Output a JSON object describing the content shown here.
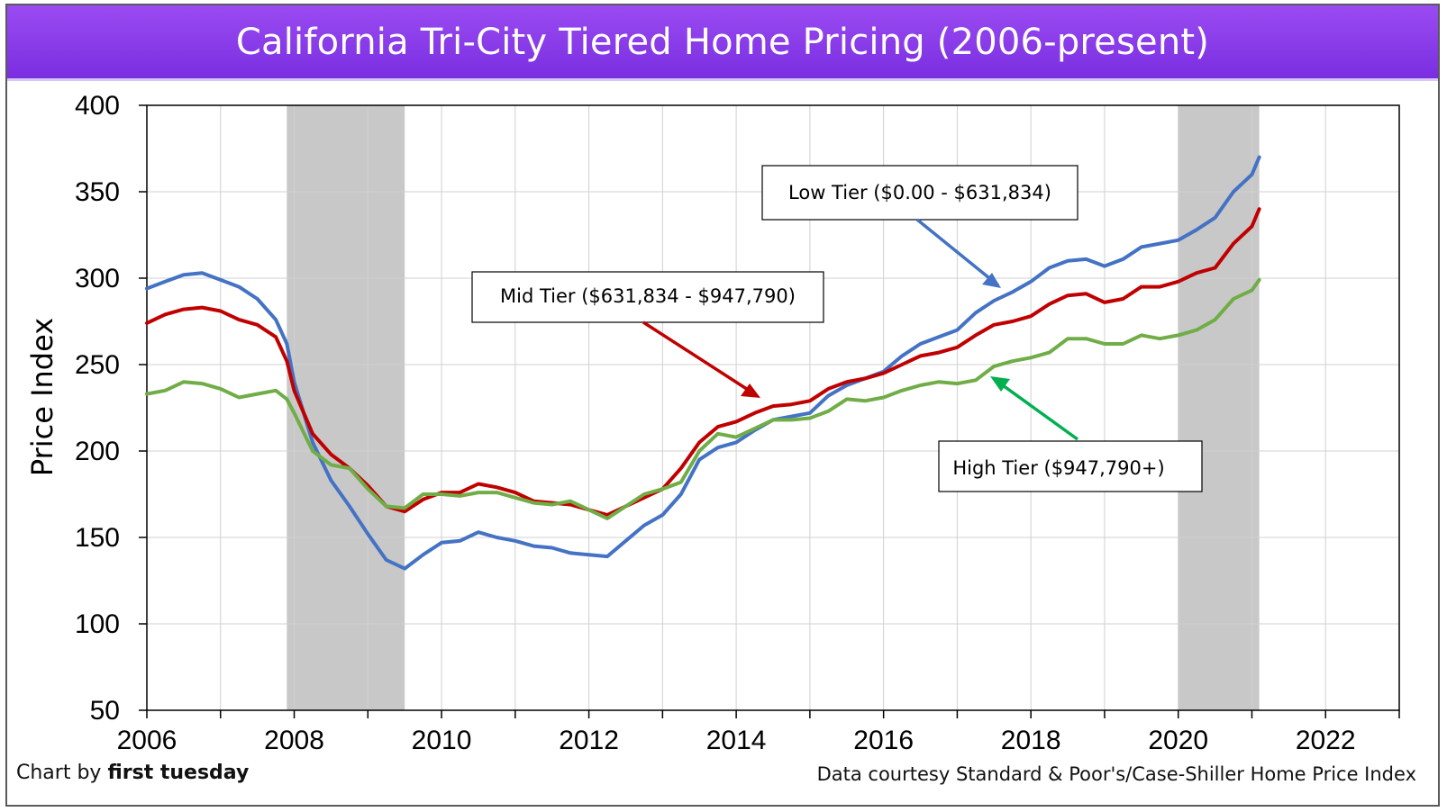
{
  "header": {
    "title": "California Tri-City Tiered Home Pricing (2006-present)"
  },
  "footer": {
    "credit_prefix": "Chart by ",
    "credit_brand": "first tuesday",
    "source": "Data courtesy Standard & Poor's/Case-Shiller Home Price Index"
  },
  "chart_data": {
    "type": "line",
    "title": "California Tri-City Tiered Home Pricing (2006-present)",
    "xlabel": "",
    "ylabel": "Price Index",
    "xlim": [
      2006,
      2023
    ],
    "ylim": [
      50,
      400
    ],
    "x_ticks": [
      "2006",
      "2008",
      "2010",
      "2012",
      "2014",
      "2016",
      "2018",
      "2020",
      "2022"
    ],
    "y_ticks": [
      "50",
      "100",
      "150",
      "200",
      "250",
      "300",
      "350",
      "400"
    ],
    "grid": true,
    "recessions": [
      [
        2007.9,
        2009.5
      ],
      [
        2020.0,
        2021.1
      ]
    ],
    "annotations": [
      {
        "text": "Low Tier ($0.00 - $631,834)"
      },
      {
        "text": "Mid Tier ($631,834 - $947,790)"
      },
      {
        "text": "High Tier ($947,790+)"
      }
    ],
    "series": [
      {
        "key": "low",
        "color": "#4472c4",
        "points": [
          [
            2006.0,
            294
          ],
          [
            2006.25,
            298
          ],
          [
            2006.5,
            302
          ],
          [
            2006.75,
            303
          ],
          [
            2007.0,
            299
          ],
          [
            2007.25,
            295
          ],
          [
            2007.5,
            288
          ],
          [
            2007.75,
            276
          ],
          [
            2007.9,
            262
          ],
          [
            2008.0,
            240
          ],
          [
            2008.25,
            205
          ],
          [
            2008.5,
            183
          ],
          [
            2008.75,
            168
          ],
          [
            2009.0,
            152
          ],
          [
            2009.25,
            137
          ],
          [
            2009.5,
            132
          ],
          [
            2009.75,
            140
          ],
          [
            2010.0,
            147
          ],
          [
            2010.25,
            148
          ],
          [
            2010.5,
            153
          ],
          [
            2010.75,
            150
          ],
          [
            2011.0,
            148
          ],
          [
            2011.25,
            145
          ],
          [
            2011.5,
            144
          ],
          [
            2011.75,
            141
          ],
          [
            2012.0,
            140
          ],
          [
            2012.25,
            139
          ],
          [
            2012.5,
            148
          ],
          [
            2012.75,
            157
          ],
          [
            2013.0,
            163
          ],
          [
            2013.25,
            175
          ],
          [
            2013.5,
            195
          ],
          [
            2013.75,
            202
          ],
          [
            2014.0,
            205
          ],
          [
            2014.25,
            212
          ],
          [
            2014.5,
            218
          ],
          [
            2014.75,
            220
          ],
          [
            2015.0,
            222
          ],
          [
            2015.25,
            232
          ],
          [
            2015.5,
            238
          ],
          [
            2015.75,
            242
          ],
          [
            2016.0,
            246
          ],
          [
            2016.25,
            255
          ],
          [
            2016.5,
            262
          ],
          [
            2016.75,
            266
          ],
          [
            2017.0,
            270
          ],
          [
            2017.25,
            280
          ],
          [
            2017.5,
            287
          ],
          [
            2017.75,
            292
          ],
          [
            2018.0,
            298
          ],
          [
            2018.25,
            306
          ],
          [
            2018.5,
            310
          ],
          [
            2018.75,
            311
          ],
          [
            2019.0,
            307
          ],
          [
            2019.25,
            311
          ],
          [
            2019.5,
            318
          ],
          [
            2019.75,
            320
          ],
          [
            2020.0,
            322
          ],
          [
            2020.25,
            328
          ],
          [
            2020.5,
            335
          ],
          [
            2020.75,
            350
          ],
          [
            2021.0,
            360
          ],
          [
            2021.1,
            370
          ]
        ]
      },
      {
        "key": "mid",
        "color": "#c00000",
        "points": [
          [
            2006.0,
            274
          ],
          [
            2006.25,
            279
          ],
          [
            2006.5,
            282
          ],
          [
            2006.75,
            283
          ],
          [
            2007.0,
            281
          ],
          [
            2007.25,
            276
          ],
          [
            2007.5,
            273
          ],
          [
            2007.75,
            266
          ],
          [
            2007.9,
            252
          ],
          [
            2008.0,
            235
          ],
          [
            2008.25,
            210
          ],
          [
            2008.5,
            198
          ],
          [
            2008.75,
            190
          ],
          [
            2009.0,
            180
          ],
          [
            2009.25,
            168
          ],
          [
            2009.5,
            165
          ],
          [
            2009.75,
            172
          ],
          [
            2010.0,
            176
          ],
          [
            2010.25,
            176
          ],
          [
            2010.5,
            181
          ],
          [
            2010.75,
            179
          ],
          [
            2011.0,
            176
          ],
          [
            2011.25,
            171
          ],
          [
            2011.5,
            170
          ],
          [
            2011.75,
            169
          ],
          [
            2012.0,
            166
          ],
          [
            2012.25,
            163
          ],
          [
            2012.5,
            168
          ],
          [
            2012.75,
            173
          ],
          [
            2013.0,
            178
          ],
          [
            2013.25,
            190
          ],
          [
            2013.5,
            205
          ],
          [
            2013.75,
            214
          ],
          [
            2014.0,
            217
          ],
          [
            2014.25,
            222
          ],
          [
            2014.5,
            226
          ],
          [
            2014.75,
            227
          ],
          [
            2015.0,
            229
          ],
          [
            2015.25,
            236
          ],
          [
            2015.5,
            240
          ],
          [
            2015.75,
            242
          ],
          [
            2016.0,
            245
          ],
          [
            2016.25,
            250
          ],
          [
            2016.5,
            255
          ],
          [
            2016.75,
            257
          ],
          [
            2017.0,
            260
          ],
          [
            2017.25,
            267
          ],
          [
            2017.5,
            273
          ],
          [
            2017.75,
            275
          ],
          [
            2018.0,
            278
          ],
          [
            2018.25,
            285
          ],
          [
            2018.5,
            290
          ],
          [
            2018.75,
            291
          ],
          [
            2019.0,
            286
          ],
          [
            2019.25,
            288
          ],
          [
            2019.5,
            295
          ],
          [
            2019.75,
            295
          ],
          [
            2020.0,
            298
          ],
          [
            2020.25,
            303
          ],
          [
            2020.5,
            306
          ],
          [
            2020.75,
            320
          ],
          [
            2021.0,
            330
          ],
          [
            2021.1,
            340
          ]
        ]
      },
      {
        "key": "high",
        "color": "#70ad47",
        "points": [
          [
            2006.0,
            233
          ],
          [
            2006.25,
            235
          ],
          [
            2006.5,
            240
          ],
          [
            2006.75,
            239
          ],
          [
            2007.0,
            236
          ],
          [
            2007.25,
            231
          ],
          [
            2007.5,
            233
          ],
          [
            2007.75,
            235
          ],
          [
            2007.9,
            230
          ],
          [
            2008.0,
            222
          ],
          [
            2008.25,
            200
          ],
          [
            2008.5,
            192
          ],
          [
            2008.75,
            190
          ],
          [
            2009.0,
            178
          ],
          [
            2009.25,
            168
          ],
          [
            2009.5,
            167
          ],
          [
            2009.75,
            175
          ],
          [
            2010.0,
            175
          ],
          [
            2010.25,
            174
          ],
          [
            2010.5,
            176
          ],
          [
            2010.75,
            176
          ],
          [
            2011.0,
            173
          ],
          [
            2011.25,
            170
          ],
          [
            2011.5,
            169
          ],
          [
            2011.75,
            171
          ],
          [
            2012.0,
            166
          ],
          [
            2012.25,
            161
          ],
          [
            2012.5,
            168
          ],
          [
            2012.75,
            175
          ],
          [
            2013.0,
            178
          ],
          [
            2013.25,
            182
          ],
          [
            2013.5,
            200
          ],
          [
            2013.75,
            210
          ],
          [
            2014.0,
            208
          ],
          [
            2014.25,
            213
          ],
          [
            2014.5,
            218
          ],
          [
            2014.75,
            218
          ],
          [
            2015.0,
            219
          ],
          [
            2015.25,
            223
          ],
          [
            2015.5,
            230
          ],
          [
            2015.75,
            229
          ],
          [
            2016.0,
            231
          ],
          [
            2016.25,
            235
          ],
          [
            2016.5,
            238
          ],
          [
            2016.75,
            240
          ],
          [
            2017.0,
            239
          ],
          [
            2017.25,
            241
          ],
          [
            2017.5,
            249
          ],
          [
            2017.75,
            252
          ],
          [
            2018.0,
            254
          ],
          [
            2018.25,
            257
          ],
          [
            2018.5,
            265
          ],
          [
            2018.75,
            265
          ],
          [
            2019.0,
            262
          ],
          [
            2019.25,
            262
          ],
          [
            2019.5,
            267
          ],
          [
            2019.75,
            265
          ],
          [
            2020.0,
            267
          ],
          [
            2020.25,
            270
          ],
          [
            2020.5,
            276
          ],
          [
            2020.75,
            288
          ],
          [
            2021.0,
            293
          ],
          [
            2021.1,
            299
          ]
        ]
      }
    ]
  }
}
